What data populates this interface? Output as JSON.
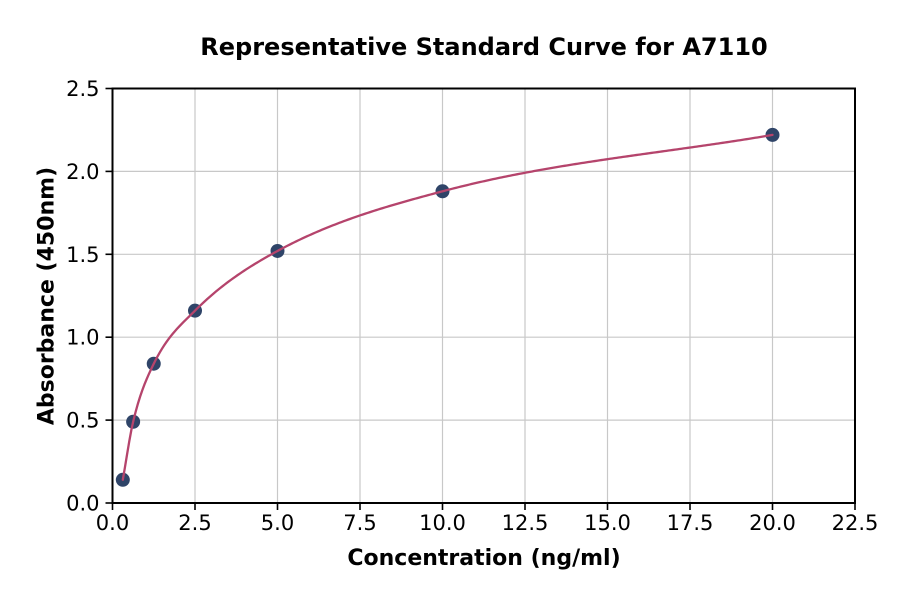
{
  "chart_data": {
    "type": "line",
    "title": "Representative Standard Curve for A7110",
    "xlabel": "Concentration (ng/ml)",
    "ylabel": "Absorbance (450nm)",
    "x": [
      0.3125,
      0.625,
      1.25,
      2.5,
      5,
      10,
      20
    ],
    "y": [
      0.14,
      0.49,
      0.84,
      1.16,
      1.52,
      1.88,
      2.22
    ],
    "xlim": [
      0,
      22.5
    ],
    "ylim": [
      0,
      2.5
    ],
    "xticks": [
      0,
      2.5,
      5,
      7.5,
      10,
      12.5,
      15,
      17.5,
      20,
      22.5
    ],
    "yticks": [
      0,
      0.5,
      1,
      1.5,
      2,
      2.5
    ],
    "xtick_labels": [
      "0.0",
      "2.5",
      "5.0",
      "7.5",
      "10.0",
      "12.5",
      "15.0",
      "17.5",
      "20.0",
      "22.5"
    ],
    "ytick_labels": [
      "0.0",
      "0.5",
      "1.0",
      "1.5",
      "2.0",
      "2.5"
    ],
    "grid": true,
    "legend": "none",
    "marker": "circle",
    "marker_radius": 7,
    "line_width": 2.3,
    "colors": {
      "line": "#b5446c",
      "marker": "#2f4468",
      "grid": "#c8c8c8",
      "spine": "#000000",
      "text": "#000000",
      "background": "#ffffff"
    }
  }
}
